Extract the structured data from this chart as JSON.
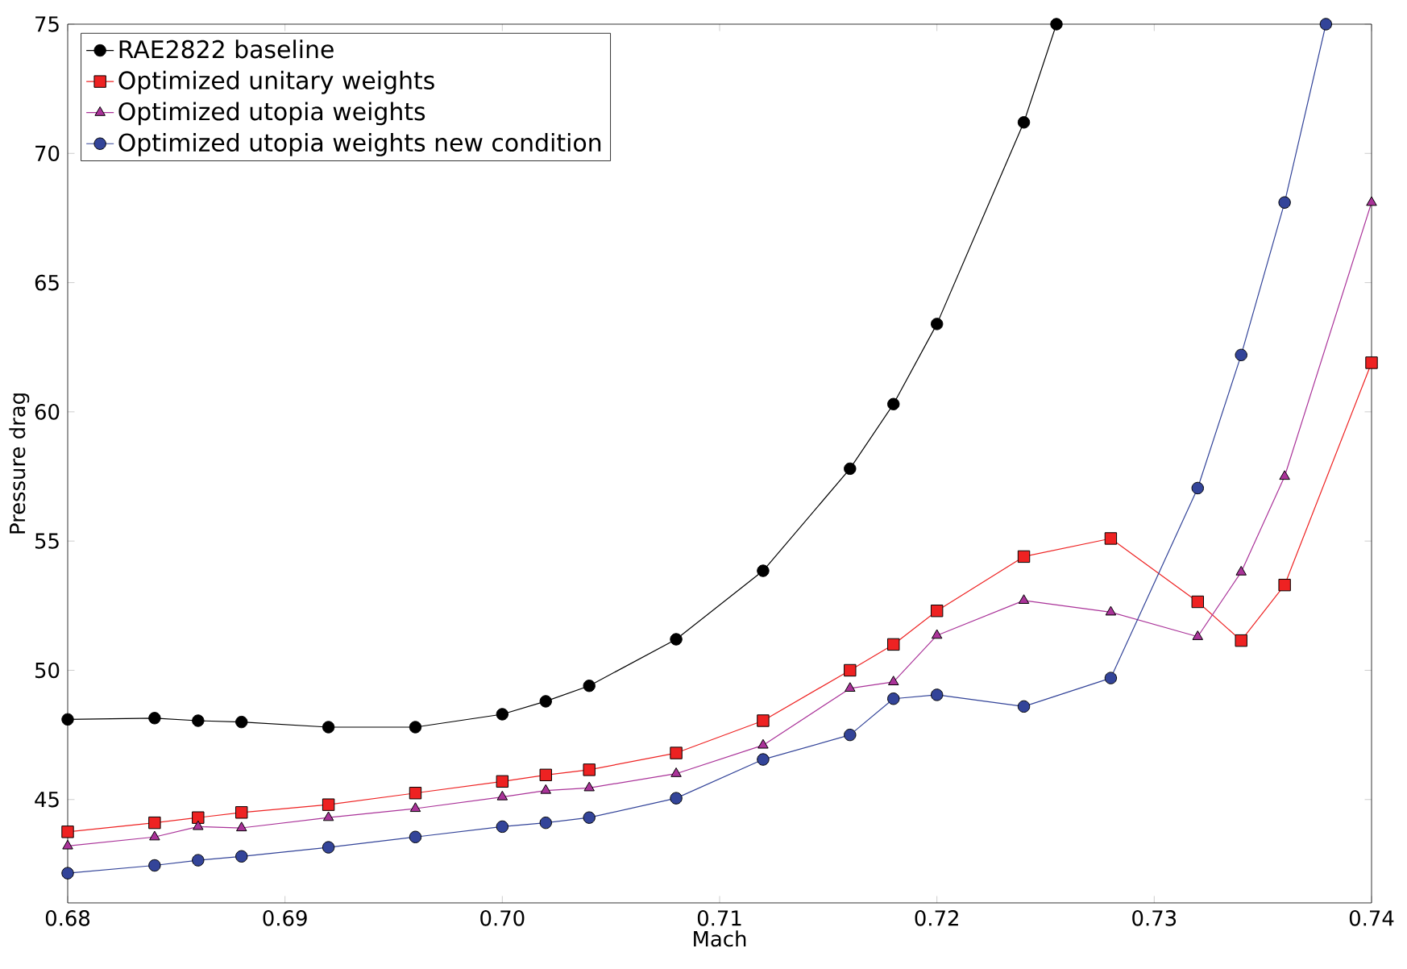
{
  "chart_data": {
    "type": "line",
    "xlabel": "Mach",
    "ylabel": "Pressure drag",
    "xlim": [
      0.68,
      0.74
    ],
    "ylim": [
      41,
      75
    ],
    "xticks": [
      0.68,
      0.69,
      {
        "value": 0.7,
        "label": "0.70"
      },
      0.71,
      0.72,
      0.73,
      0.74
    ],
    "yticks": [
      45,
      50,
      55,
      60,
      65,
      70,
      75
    ],
    "grid": false,
    "legend": "top left",
    "line_style": "solid",
    "series": [
      {
        "name": "RAE2822 baseline",
        "color": "#000000",
        "marker": "circle",
        "x": [
          0.68,
          0.684,
          0.686,
          0.688,
          0.692,
          0.696,
          0.7,
          0.702,
          0.704,
          0.708,
          0.712,
          0.716,
          0.718,
          0.72,
          0.724,
          0.7255
        ],
        "values": [
          48.1,
          48.15,
          48.05,
          48.0,
          47.8,
          47.8,
          48.3,
          48.8,
          49.4,
          51.2,
          53.85,
          57.8,
          60.3,
          63.4,
          71.2,
          75
        ]
      },
      {
        "name": "Optimized unitary weights",
        "color": "#ee2222",
        "marker": "square",
        "x": [
          0.68,
          0.684,
          0.686,
          0.688,
          0.692,
          0.696,
          0.7,
          0.702,
          0.704,
          0.708,
          0.712,
          0.716,
          0.718,
          0.72,
          0.724,
          0.728,
          0.732,
          0.734,
          0.736,
          0.74
        ],
        "values": [
          43.75,
          44.1,
          44.3,
          44.5,
          44.8,
          45.25,
          45.7,
          45.95,
          46.15,
          46.8,
          48.05,
          50.0,
          51.0,
          52.3,
          54.4,
          55.1,
          52.65,
          51.15,
          53.3,
          61.9
        ]
      },
      {
        "name": "Optimized utopia weights",
        "color": "#aa3399",
        "marker": "triangle",
        "x": [
          0.68,
          0.684,
          0.686,
          0.688,
          0.692,
          0.696,
          0.7,
          0.702,
          0.704,
          0.708,
          0.712,
          0.716,
          0.718,
          0.72,
          0.724,
          0.728,
          0.732,
          0.734,
          0.736,
          0.74
        ],
        "values": [
          43.2,
          43.55,
          43.95,
          43.9,
          44.3,
          44.65,
          45.1,
          45.35,
          45.45,
          46.0,
          47.1,
          49.3,
          49.55,
          51.35,
          52.7,
          52.25,
          51.3,
          53.8,
          57.5,
          68.1
        ]
      },
      {
        "name": "Optimized utopia weights new condition",
        "color": "#334499",
        "marker": "circle",
        "x": [
          0.68,
          0.684,
          0.686,
          0.688,
          0.692,
          0.696,
          0.7,
          0.702,
          0.704,
          0.708,
          0.712,
          0.716,
          0.718,
          0.72,
          0.724,
          0.728,
          0.732,
          0.734,
          0.736,
          0.7379
        ],
        "values": [
          42.15,
          42.45,
          42.65,
          42.8,
          43.15,
          43.55,
          43.95,
          44.1,
          44.3,
          45.05,
          46.55,
          47.5,
          48.9,
          49.05,
          48.6,
          49.7,
          57.05,
          62.2,
          68.1,
          75
        ]
      }
    ]
  }
}
